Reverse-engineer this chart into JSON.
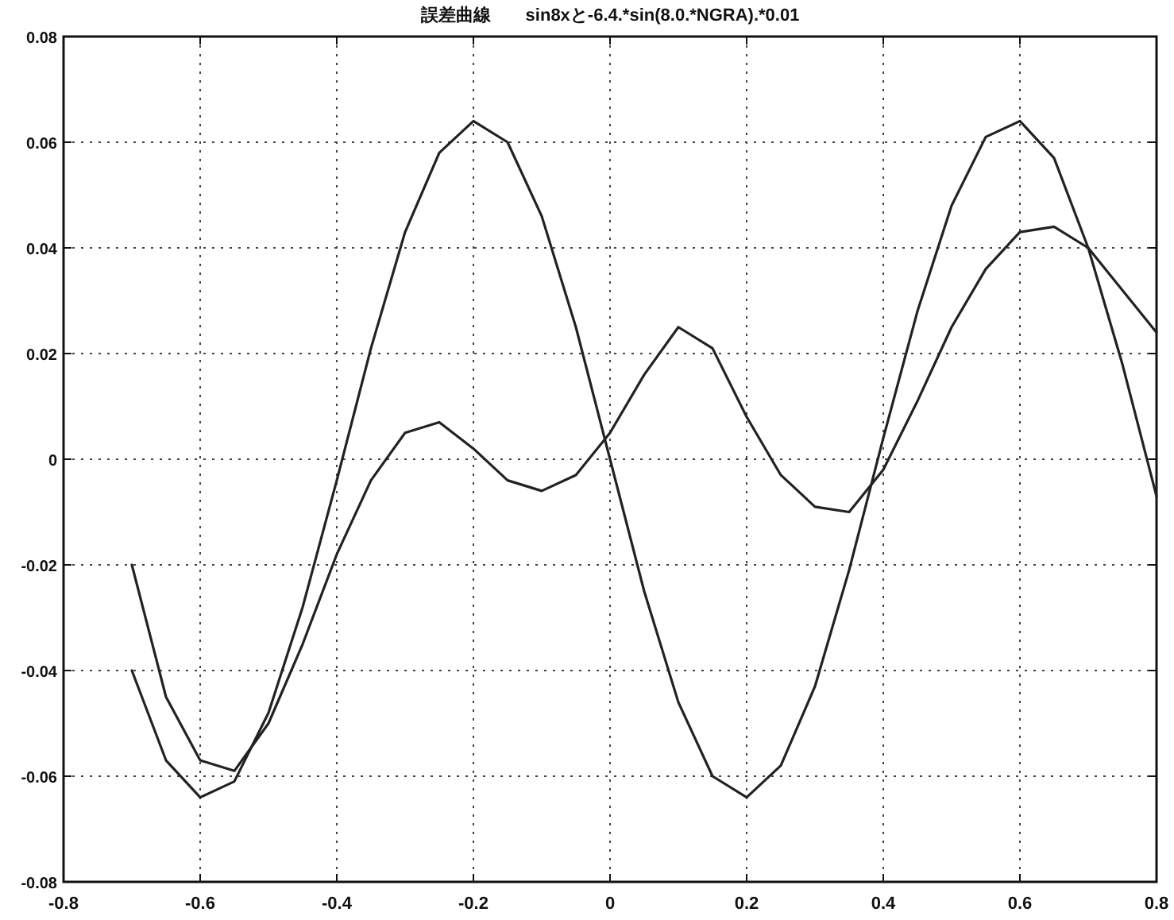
{
  "chart_data": {
    "type": "line",
    "title": "誤差曲線　　sin8xと-6.4.*sin(8.0.*NGRA).*0.01",
    "x": [
      -0.7,
      -0.65,
      -0.6,
      -0.55,
      -0.5,
      -0.45,
      -0.4,
      -0.35,
      -0.3,
      -0.25,
      -0.2,
      -0.15,
      -0.1,
      -0.05,
      0,
      0.05,
      0.1,
      0.15,
      0.2,
      0.25,
      0.3,
      0.35,
      0.4,
      0.45,
      0.5,
      0.55,
      0.6,
      0.65,
      0.7,
      0.75,
      0.8
    ],
    "series": [
      {
        "color": "#222222",
        "values": [
          -0.04,
          -0.057,
          -0.064,
          -0.061,
          -0.048,
          -0.028,
          -0.004,
          0.021,
          0.043,
          0.058,
          0.064,
          0.06,
          0.046,
          0.025,
          0.0,
          -0.025,
          -0.046,
          -0.06,
          -0.064,
          -0.058,
          -0.043,
          -0.021,
          0.004,
          0.028,
          0.048,
          0.061,
          0.064,
          0.057,
          0.04,
          0.018,
          -0.007
        ]
      },
      {
        "color": "#222222",
        "values": [
          -0.02,
          -0.045,
          -0.057,
          -0.059,
          -0.05,
          -0.035,
          -0.018,
          -0.004,
          0.005,
          0.007,
          0.002,
          -0.004,
          -0.006,
          -0.003,
          0.005,
          0.016,
          0.025,
          0.021,
          0.008,
          -0.003,
          -0.009,
          -0.01,
          -0.002,
          0.011,
          0.025,
          0.036,
          0.043,
          0.044,
          0.04,
          0.032,
          0.024
        ]
      }
    ],
    "xlim": [
      -0.8,
      0.8
    ],
    "ylim": [
      -0.08,
      0.08
    ],
    "xticks": [
      -0.8,
      -0.6,
      -0.4,
      -0.2,
      0,
      0.2,
      0.4,
      0.6,
      0.8
    ],
    "yticks": [
      -0.08,
      -0.06,
      -0.04,
      -0.02,
      0,
      0.02,
      0.04,
      0.06,
      0.08
    ],
    "grid": true
  }
}
